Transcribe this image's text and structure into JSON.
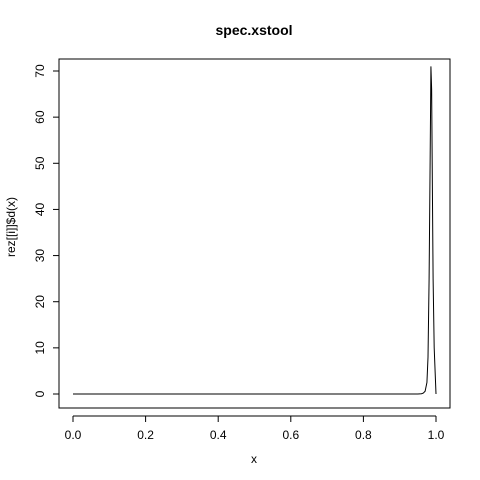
{
  "chart_data": {
    "type": "line",
    "title": "spec.xstool",
    "xlabel": "x",
    "ylabel": "rez[[i]]$d(x)",
    "xlim": [
      0.0,
      1.0
    ],
    "ylim": [
      0,
      71.5
    ],
    "x_ticks": [
      0.0,
      0.2,
      0.4,
      0.6,
      0.8,
      1.0
    ],
    "x_tick_labels": [
      "0.0",
      "0.2",
      "0.4",
      "0.6",
      "0.8",
      "1.0"
    ],
    "y_ticks": [
      0,
      10,
      20,
      30,
      40,
      50,
      60,
      70
    ],
    "y_tick_labels": [
      "0",
      "10",
      "20",
      "30",
      "40",
      "50",
      "60",
      "70"
    ],
    "grid": false,
    "legend": "none",
    "series": [
      {
        "color": "#000000",
        "x": [
          0.0,
          0.2,
          0.4,
          0.6,
          0.8,
          0.9,
          0.95,
          0.96,
          0.965,
          0.97,
          0.975,
          0.978,
          0.981,
          0.984,
          0.986,
          0.988,
          0.99,
          0.992,
          0.995,
          1.0
        ],
        "y": [
          0,
          0,
          0,
          0,
          0,
          0,
          0,
          0.05,
          0.2,
          0.6,
          2.5,
          8,
          25,
          52,
          71,
          66,
          45,
          25,
          10,
          0
        ]
      }
    ]
  }
}
